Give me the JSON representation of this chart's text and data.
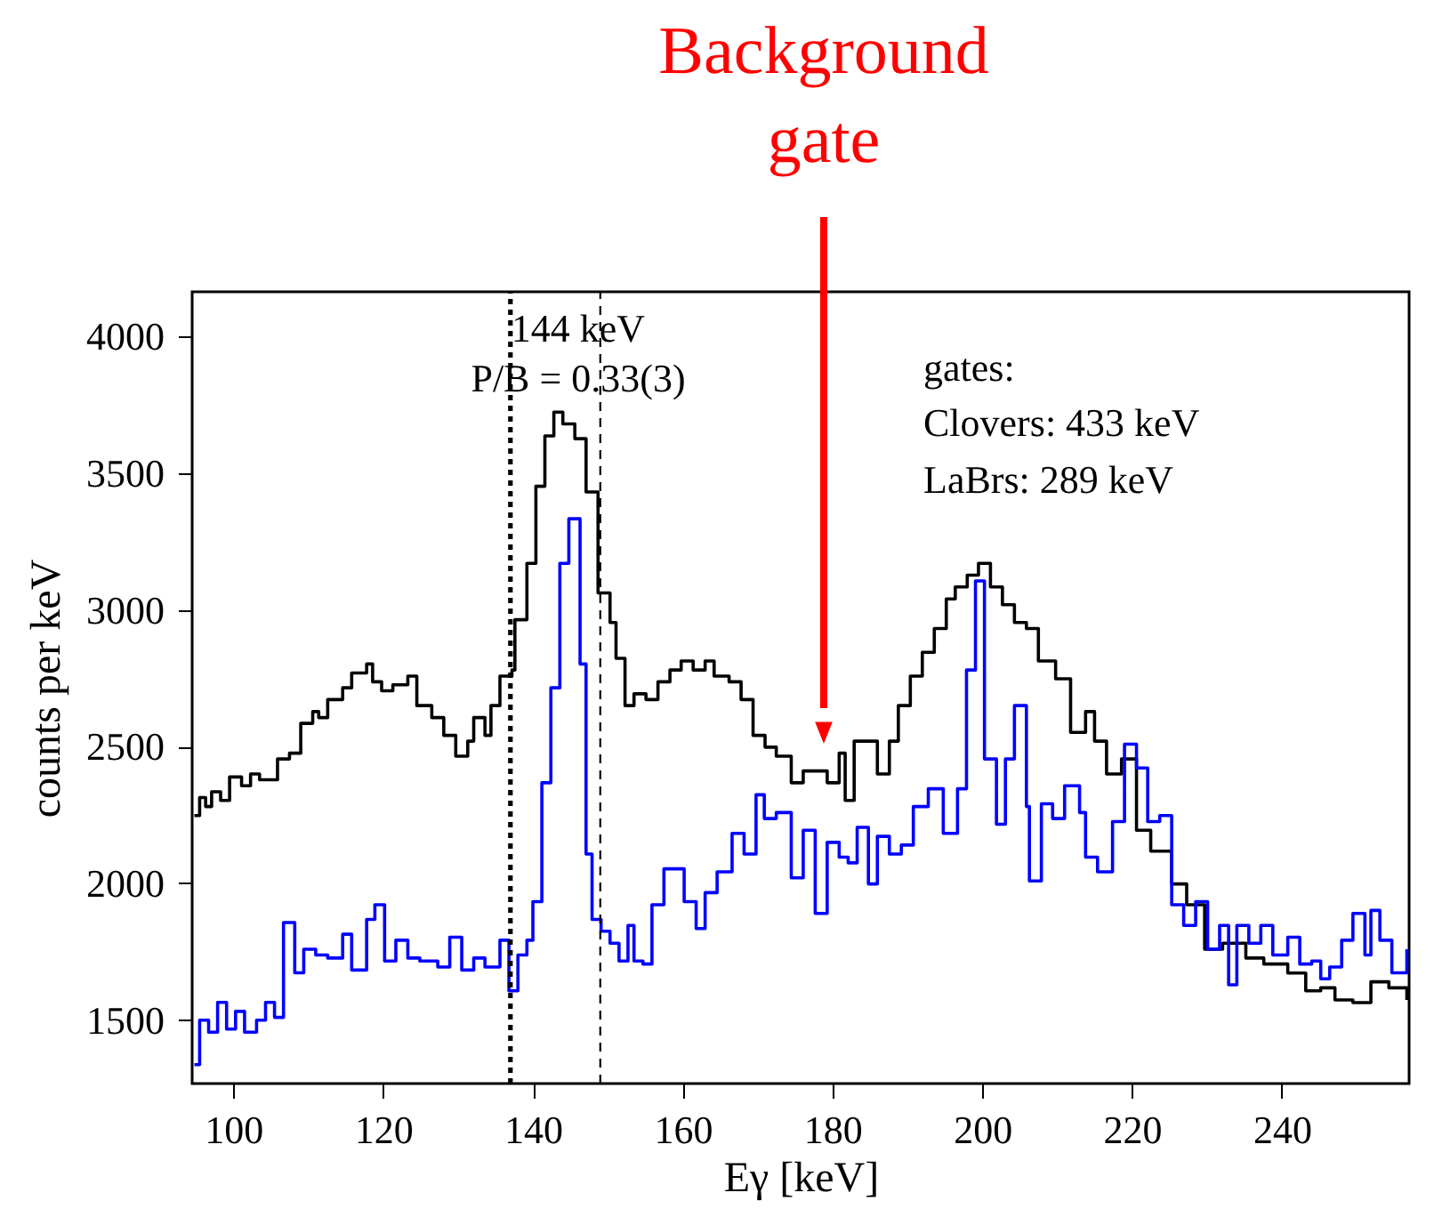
{
  "chart_data": {
    "type": "step",
    "xlabel": "Eγ [keV]",
    "ylabel": "counts per keV",
    "xlim": [
      94.5,
      257
    ],
    "ylim": [
      1268,
      4163
    ],
    "xticks": [
      100,
      120,
      140,
      160,
      180,
      200,
      220,
      240
    ],
    "yticks": [
      1500,
      2000,
      2500,
      3000,
      3500,
      4000
    ],
    "grid": false,
    "series": [
      {
        "color": "#000000",
        "x": [
          94.8,
          95.5,
          96.3,
          97.1,
          98.3,
          99.5,
          101.1,
          102.3,
          103.5,
          105.9,
          107.5,
          109.0,
          110.6,
          111.4,
          112.6,
          114.6,
          115.8,
          117.8,
          118.6,
          119.8,
          121.3,
          123.3,
          124.5,
          126.5,
          128.1,
          129.7,
          131.3,
          132.1,
          133.6,
          134.4,
          135.6,
          137.2,
          137.6,
          139.2,
          140.4,
          141.6,
          142.8,
          144.0,
          145.6,
          147.1,
          148.7,
          150.3,
          151.1,
          152.3,
          153.5,
          155.1,
          156.7,
          158.3,
          159.8,
          161.4,
          163.0,
          164.2,
          166.2,
          167.8,
          169.4,
          171.0,
          172.5,
          174.5,
          176.1,
          177.7,
          179.3,
          180.9,
          181.7,
          182.9,
          184.4,
          186.0,
          187.6,
          188.8,
          190.4,
          192.0,
          193.6,
          195.2,
          196.4,
          198.0,
          199.5,
          201.1,
          202.7,
          204.3,
          205.9,
          207.5,
          209.8,
          211.8,
          213.8,
          215.0,
          216.6,
          218.6,
          220.6,
          222.5,
          225.3,
          227.3,
          229.7,
          232.1,
          235.2,
          237.6,
          240.8,
          243.2,
          245.2,
          247.1,
          249.5,
          251.9,
          254.3,
          256.7
        ],
        "values": [
          2248,
          2314,
          2281,
          2335,
          2303,
          2389,
          2357,
          2400,
          2379,
          2455,
          2476,
          2585,
          2628,
          2606,
          2672,
          2715,
          2769,
          2802,
          2737,
          2704,
          2726,
          2758,
          2650,
          2606,
          2541,
          2465,
          2520,
          2606,
          2541,
          2650,
          2758,
          2780,
          2964,
          3170,
          3452,
          3636,
          3723,
          3680,
          3626,
          3431,
          3062,
          2954,
          2823,
          2650,
          2693,
          2672,
          2737,
          2780,
          2813,
          2780,
          2813,
          2758,
          2737,
          2672,
          2541,
          2498,
          2465,
          2368,
          2411,
          2411,
          2368,
          2476,
          2303,
          2520,
          2520,
          2400,
          2520,
          2650,
          2758,
          2845,
          2932,
          3040,
          3084,
          3127,
          3170,
          3084,
          3019,
          2954,
          2932,
          2813,
          2748,
          2552,
          2628,
          2520,
          2400,
          2455,
          2194,
          2118,
          1998,
          1922,
          1759,
          1781,
          1727,
          1705,
          1672,
          1607,
          1618,
          1574,
          1564,
          1640,
          1618,
          1574
        ]
      },
      {
        "color": "#0000ff",
        "x": [
          94.8,
          95.5,
          96.7,
          97.9,
          99.1,
          100.3,
          101.5,
          103.1,
          104.3,
          105.5,
          106.7,
          108.2,
          109.4,
          111.0,
          112.6,
          114.6,
          115.8,
          117.8,
          118.9,
          120.2,
          121.7,
          123.3,
          124.9,
          127.3,
          128.9,
          130.5,
          132.1,
          133.6,
          135.6,
          136.8,
          138.0,
          139.2,
          140.0,
          141.2,
          142.4,
          143.6,
          144.8,
          146.3,
          147.1,
          147.9,
          149.1,
          150.3,
          151.5,
          152.7,
          153.5,
          154.7,
          155.9,
          157.5,
          160.2,
          161.8,
          163.0,
          164.6,
          166.6,
          168.2,
          169.8,
          170.9,
          172.5,
          174.5,
          176.1,
          177.7,
          179.3,
          180.9,
          182.1,
          183.3,
          184.8,
          186.0,
          187.6,
          189.2,
          190.8,
          192.8,
          194.8,
          196.7,
          197.9,
          199.1,
          200.3,
          201.9,
          203.1,
          204.3,
          205.9,
          206.3,
          207.9,
          209.4,
          211.0,
          213.0,
          213.8,
          215.4,
          217.4,
          219.0,
          220.6,
          222.1,
          223.7,
          225.3,
          226.9,
          228.5,
          230.1,
          231.7,
          232.9,
          234.0,
          235.6,
          237.2,
          238.8,
          240.8,
          242.4,
          244.0,
          245.2,
          246.4,
          248.0,
          249.5,
          251.1,
          251.9,
          253.1,
          254.7,
          256.7
        ],
        "values": [
          1337,
          1500,
          1456,
          1565,
          1467,
          1532,
          1456,
          1500,
          1565,
          1510,
          1857,
          1673,
          1759,
          1738,
          1727,
          1814,
          1683,
          1868,
          1922,
          1716,
          1792,
          1727,
          1716,
          1694,
          1803,
          1683,
          1727,
          1694,
          1792,
          1607,
          1738,
          1792,
          1933,
          2368,
          2715,
          3170,
          3333,
          2802,
          2107,
          1868,
          1825,
          1781,
          1716,
          1846,
          1716,
          1705,
          1922,
          2053,
          1933,
          1835,
          1966,
          2042,
          2183,
          2107,
          2324,
          2237,
          2259,
          2020,
          2194,
          1890,
          2150,
          2096,
          2075,
          2205,
          1998,
          2172,
          2107,
          2140,
          2281,
          2346,
          2183,
          2346,
          2780,
          3106,
          2455,
          2216,
          2455,
          2650,
          2281,
          2009,
          2291,
          2237,
          2357,
          2259,
          2096,
          2042,
          2226,
          2509,
          2422,
          2226,
          2248,
          1922,
          1846,
          1933,
          1759,
          1846,
          1629,
          1846,
          1781,
          1846,
          1738,
          1803,
          1705,
          1716,
          1651,
          1694,
          1792,
          1890,
          1738,
          1901,
          1792,
          1673,
          1759
        ]
      }
    ],
    "ref_lines": [
      {
        "axis": "x",
        "value": 137,
        "line_style": "dotted"
      },
      {
        "axis": "x",
        "value": 149,
        "line_style": "dashed"
      }
    ],
    "annotations": [
      "Background gate",
      "144 keV",
      "P/B = 0.33(3)",
      "gates:",
      "Clovers: 433 keV",
      "LaBrs:   289 keV"
    ]
  }
}
